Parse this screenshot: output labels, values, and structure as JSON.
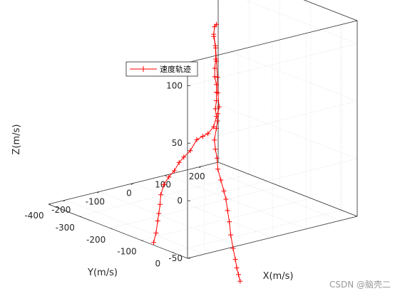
{
  "chart_data": {
    "type": "line",
    "projection": "3d",
    "xlabel": "X(m/s)",
    "ylabel": "Y(m/s)",
    "zlabel": "Z(m/s)",
    "xlim": [
      -250,
      250
    ],
    "ylim": [
      -400,
      50
    ],
    "zlim": [
      -50,
      120
    ],
    "x_ticks": [
      "-200",
      "-100",
      "0",
      "100",
      "200"
    ],
    "y_ticks": [
      "0",
      "-100",
      "-200",
      "-300",
      "-400"
    ],
    "z_ticks": [
      "-50",
      "0",
      "50",
      "100"
    ],
    "grid": true,
    "legend_position": "top-left",
    "series": [
      {
        "name": "速度轨迹",
        "color": "#ff0000",
        "marker": "+",
        "branches": [
          [
            [
              -10,
              -120,
              118
            ],
            [
              -14,
              -122,
              116
            ],
            [
              -18,
              -120,
              110
            ],
            [
              -15,
              -118,
              100
            ],
            [
              -12,
              -120,
              88
            ],
            [
              -14,
              -121,
              80
            ],
            [
              -16,
              -119,
              73
            ],
            [
              -12,
              -118,
              66
            ],
            [
              -10,
              -120,
              59
            ],
            [
              -12,
              -118,
              52
            ],
            [
              -14,
              -119,
              45
            ],
            [
              -10,
              -120,
              38
            ],
            [
              -20,
              -118,
              30
            ],
            [
              -36,
              -119,
              25
            ],
            [
              -52,
              -118,
              24
            ],
            [
              -68,
              -120,
              22
            ],
            [
              -88,
              -119,
              14
            ],
            [
              -108,
              -118,
              10
            ],
            [
              -120,
              -120,
              6
            ],
            [
              -135,
              -119,
              0
            ],
            [
              -152,
              -118,
              -4
            ],
            [
              -165,
              -120,
              -10
            ],
            [
              -175,
              -119,
              -18
            ],
            [
              -178,
              -118,
              -26
            ],
            [
              -180,
              -120,
              -34
            ],
            [
              -184,
              -119,
              -40
            ],
            [
              -190,
              -118,
              -50
            ],
            [
              -195,
              -120,
              -58
            ]
          ],
          [
            [
              -18,
              -120,
              108
            ],
            [
              -14,
              -118,
              98
            ],
            [
              -10,
              -120,
              86
            ],
            [
              -8,
              -119,
              72
            ],
            [
              -6,
              -120,
              58
            ],
            [
              -4,
              -118,
              46
            ],
            [
              -6,
              -120,
              40
            ],
            [
              -8,
              -119,
              34
            ],
            [
              -12,
              -118,
              28
            ],
            [
              -16,
              -120,
              18
            ],
            [
              -14,
              -119,
              10
            ],
            [
              -10,
              -118,
              2
            ],
            [
              -6,
              -120,
              -8
            ],
            [
              2,
              -119,
              -18
            ],
            [
              10,
              -118,
              -28
            ],
            [
              18,
              -120,
              -36
            ],
            [
              22,
              -119,
              -46
            ],
            [
              26,
              -118,
              -56
            ],
            [
              32,
              -120,
              -68
            ],
            [
              38,
              -119,
              -80
            ],
            [
              44,
              -118,
              -90
            ],
            [
              50,
              -120,
              -98
            ],
            [
              54,
              -119,
              -104
            ],
            [
              58,
              -118,
              -110
            ]
          ]
        ]
      }
    ]
  },
  "watermark": "CSDN @脑壳二"
}
